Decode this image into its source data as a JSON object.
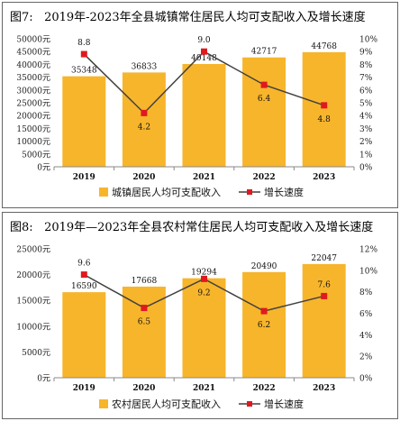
{
  "chart_data": [
    {
      "type": "bar",
      "title_prefix": "图7:",
      "title": "2019年-2023年全县城镇常住居民人均可支配收入及增长速度",
      "categories": [
        "2019",
        "2020",
        "2021",
        "2022",
        "2023"
      ],
      "series": [
        {
          "name": "城镇居民人均可支配收入",
          "type": "bar",
          "axis": "left",
          "values": [
            35348,
            36833,
            40148,
            42717,
            44768
          ],
          "labels": [
            "35348",
            "36833",
            "40148",
            "42717",
            "44768"
          ]
        },
        {
          "name": "增长速度",
          "type": "line",
          "axis": "right",
          "values": [
            8.8,
            4.2,
            9.0,
            6.4,
            4.8
          ],
          "labels": [
            "8.8",
            "4.2",
            "9.0",
            "6.4",
            "4.8"
          ]
        }
      ],
      "ylim_left": [
        0,
        50000
      ],
      "yticks_left": [
        "0元",
        "5000元",
        "10000元",
        "15000元",
        "20000元",
        "25000元",
        "30000元",
        "35000元",
        "40000元",
        "45000元",
        "50000元"
      ],
      "ylim_right": [
        0,
        10
      ],
      "yticks_right": [
        "0%",
        "1%",
        "2%",
        "3%",
        "4%",
        "5%",
        "6%",
        "7%",
        "8%",
        "9%",
        "10%"
      ],
      "legend_position": "bottom",
      "colors": {
        "bar": "#F7B52B",
        "line": "#404040",
        "marker": "#E0191F"
      }
    },
    {
      "type": "bar",
      "title_prefix": "图8:",
      "title": "2019年—2023年全县农村常住居民人均可支配收入及增长速度",
      "categories": [
        "2019",
        "2020",
        "2021",
        "2022",
        "2023"
      ],
      "series": [
        {
          "name": "农村居民人均可支配收入",
          "type": "bar",
          "axis": "left",
          "values": [
            16590,
            17668,
            19294,
            20490,
            22047
          ],
          "labels": [
            "16590",
            "17668",
            "19294",
            "20490",
            "22047"
          ]
        },
        {
          "name": "增长速度",
          "type": "line",
          "axis": "right",
          "values": [
            9.6,
            6.5,
            9.2,
            6.2,
            7.6
          ],
          "labels": [
            "9.6",
            "6.5",
            "9.2",
            "6.2",
            "7.6"
          ]
        }
      ],
      "ylim_left": [
        0,
        25000
      ],
      "yticks_left": [
        "0元",
        "5000元",
        "10000元",
        "15000元",
        "20000元",
        "25000元"
      ],
      "ylim_right": [
        0,
        12
      ],
      "yticks_right": [
        "0%",
        "2%",
        "4%",
        "6%",
        "8%",
        "10%",
        "12%"
      ],
      "legend_position": "bottom",
      "colors": {
        "bar": "#F7B52B",
        "line": "#404040",
        "marker": "#E0191F"
      }
    }
  ]
}
